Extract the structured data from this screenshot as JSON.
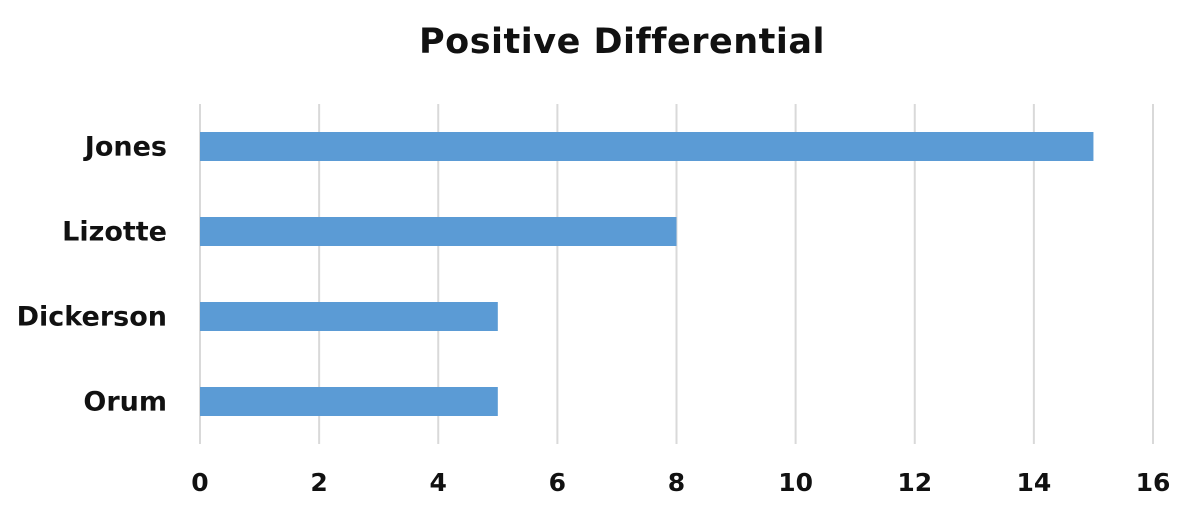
{
  "chart_data": {
    "type": "bar",
    "orientation": "horizontal",
    "title": "Positive Differential",
    "categories": [
      "Jones",
      "Lizotte",
      "Dickerson",
      "Orum"
    ],
    "values": [
      15,
      8,
      5,
      5
    ],
    "xlim": [
      0,
      16
    ],
    "xticks": [
      "0",
      "2",
      "4",
      "6",
      "8",
      "10",
      "12",
      "14",
      "16"
    ],
    "xlabel": "",
    "ylabel": "",
    "grid": "vertical",
    "legend": "none"
  },
  "colors": {
    "bar": "#5b9bd5",
    "grid": "#d9d9d9",
    "text": "#111111",
    "background": "#ffffff"
  }
}
